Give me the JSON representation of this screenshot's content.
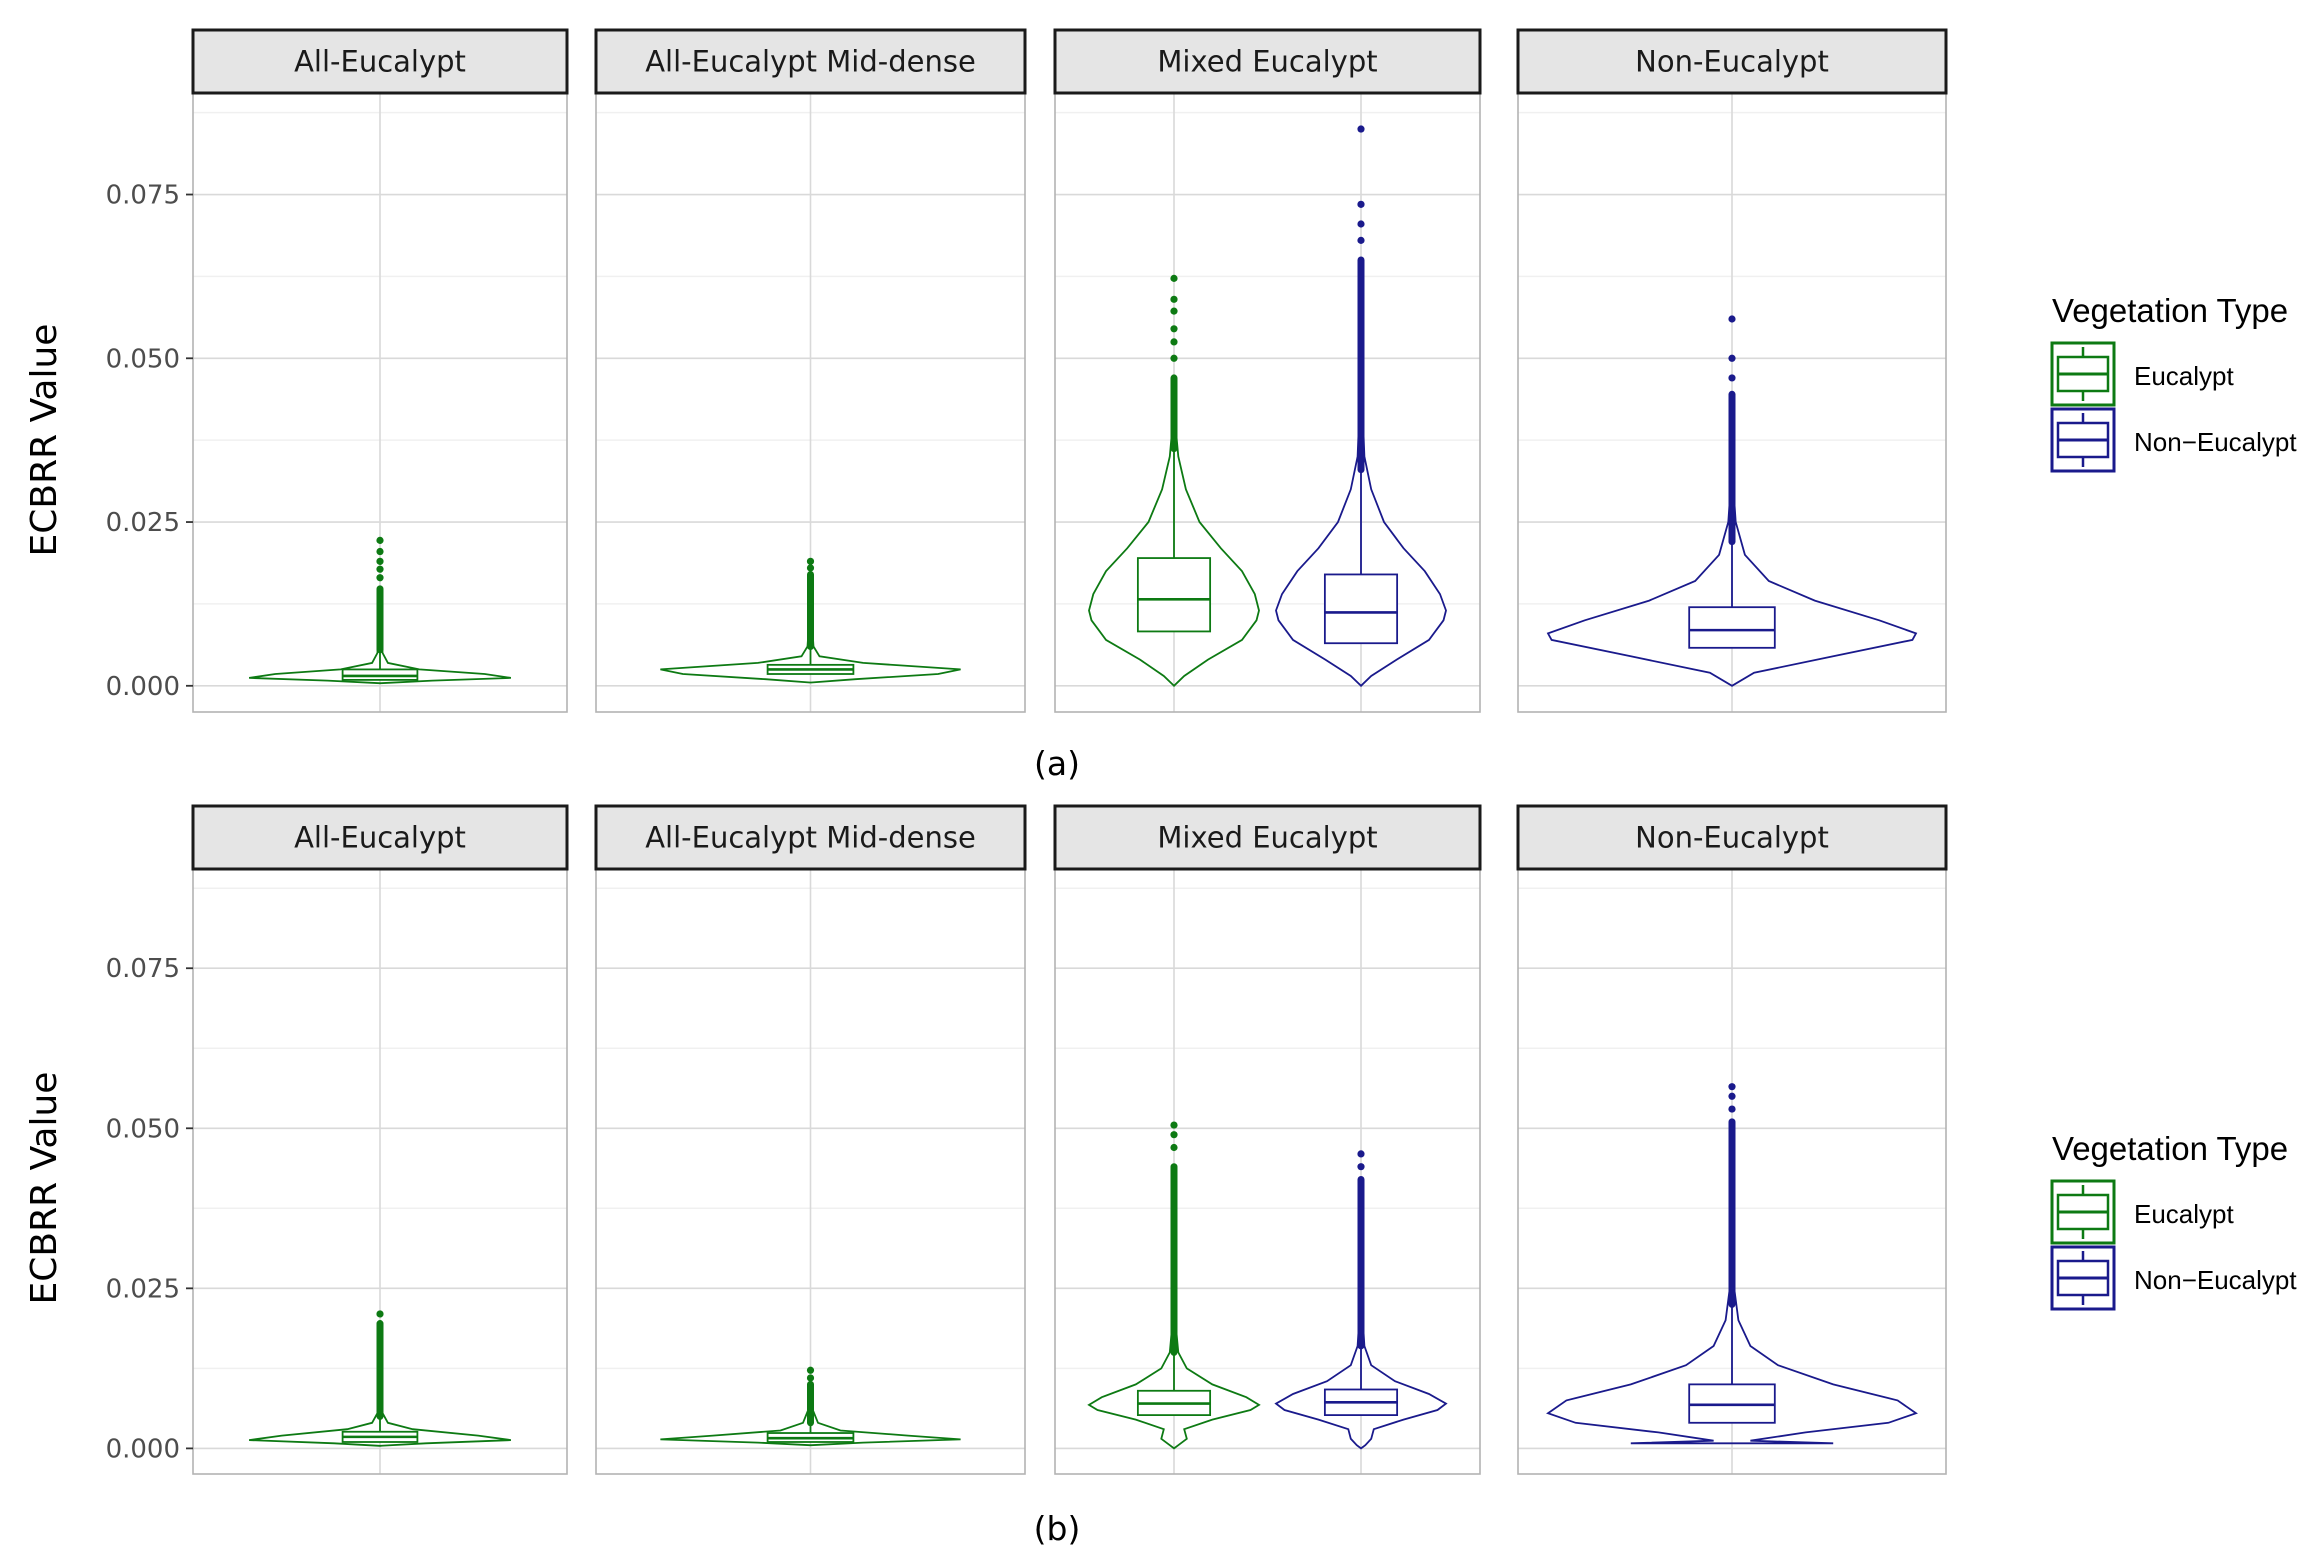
{
  "chart_data": [
    {
      "id": "a",
      "type": "violin",
      "caption": "(a)",
      "ylabel": "ECBRR Value",
      "ylim": [
        -0.004,
        0.0905
      ],
      "yticks": [
        "0.000",
        "0.025",
        "0.050",
        "0.075"
      ],
      "ytick_values": [
        0,
        0.025,
        0.05,
        0.075
      ],
      "legend": {
        "title": "Vegetation Type",
        "entries": [
          {
            "label": "Eucalypt",
            "color": "#0d7a13"
          },
          {
            "label": "Non−Eucalypt",
            "color": "#1a1a8c"
          }
        ]
      },
      "panels": [
        {
          "strip": "All-Eucalypt",
          "series": [
            {
              "name": "Eucalypt",
              "color": "#0d7a13",
              "pos": 0.5,
              "q1": 0.0009,
              "median": 0.0015,
              "q3": 0.0025,
              "whisker_high": 0.0055,
              "outlier_max": 0.0222,
              "dense_top": 0.0148,
              "sparse": [
                0.0165,
                0.0178,
                0.019,
                0.0205,
                0.0222
              ],
              "violin": [
                [
                  0.0004,
                  0.005
                ],
                [
                  0.0008,
                  0.4
                ],
                [
                  0.0012,
                  1.0
                ],
                [
                  0.0018,
                  0.8
                ],
                [
                  0.0025,
                  0.3
                ],
                [
                  0.0035,
                  0.06
                ],
                [
                  0.005,
                  0.02
                ],
                [
                  0.008,
                  0.008
                ],
                [
                  0.012,
                  0.004
                ],
                [
                  0.015,
                  0.003
                ]
              ]
            }
          ]
        },
        {
          "strip": "All-Eucalypt Mid-dense",
          "series": [
            {
              "name": "Eucalypt",
              "color": "#0d7a13",
              "pos": 0.5,
              "q1": 0.0018,
              "median": 0.0025,
              "q3": 0.0032,
              "whisker_high": 0.006,
              "outlier_max": 0.019,
              "dense_top": 0.017,
              "sparse": [
                0.018,
                0.019
              ],
              "violin": [
                [
                  0.0005,
                  0.005
                ],
                [
                  0.001,
                  0.3
                ],
                [
                  0.0018,
                  0.85
                ],
                [
                  0.0025,
                  1.0
                ],
                [
                  0.0035,
                  0.35
                ],
                [
                  0.0045,
                  0.06
                ],
                [
                  0.006,
                  0.02
                ],
                [
                  0.01,
                  0.008
                ],
                [
                  0.015,
                  0.004
                ],
                [
                  0.017,
                  0.003
                ]
              ]
            }
          ]
        },
        {
          "strip": "Mixed Eucalypt",
          "series": [
            {
              "name": "Eucalypt",
              "color": "#0d7a13",
              "pos": 0.28,
              "q1": 0.0083,
              "median": 0.0132,
              "q3": 0.0195,
              "whisker_high": 0.0362,
              "outlier_max": 0.0622,
              "dense_top": 0.047,
              "sparse": [
                0.05,
                0.0525,
                0.0545,
                0.0572,
                0.059,
                0.0622
              ],
              "violin": [
                [
                  0.0,
                  0.0
                ],
                [
                  0.0015,
                  0.12
                ],
                [
                  0.004,
                  0.4
                ],
                [
                  0.007,
                  0.8
                ],
                [
                  0.01,
                  0.97
                ],
                [
                  0.0115,
                  1.0
                ],
                [
                  0.014,
                  0.95
                ],
                [
                  0.0175,
                  0.8
                ],
                [
                  0.021,
                  0.55
                ],
                [
                  0.025,
                  0.3
                ],
                [
                  0.03,
                  0.14
                ],
                [
                  0.035,
                  0.05
                ],
                [
                  0.04,
                  0.015
                ],
                [
                  0.045,
                  0.008
                ],
                [
                  0.047,
                  0.005
                ]
              ]
            },
            {
              "name": "Non-Eucalypt",
              "color": "#1a1a8c",
              "pos": 0.72,
              "q1": 0.0065,
              "median": 0.0112,
              "q3": 0.017,
              "whisker_high": 0.033,
              "outlier_max": 0.085,
              "dense_top": 0.065,
              "sparse": [
                0.068,
                0.0705,
                0.0735,
                0.085
              ],
              "violin": [
                [
                  0.0,
                  0.0
                ],
                [
                  0.0015,
                  0.12
                ],
                [
                  0.004,
                  0.42
                ],
                [
                  0.007,
                  0.8
                ],
                [
                  0.01,
                  0.97
                ],
                [
                  0.0115,
                  1.0
                ],
                [
                  0.014,
                  0.93
                ],
                [
                  0.0175,
                  0.75
                ],
                [
                  0.021,
                  0.5
                ],
                [
                  0.025,
                  0.27
                ],
                [
                  0.03,
                  0.12
                ],
                [
                  0.035,
                  0.04
                ],
                [
                  0.045,
                  0.01
                ],
                [
                  0.055,
                  0.006
                ],
                [
                  0.065,
                  0.004
                ]
              ]
            }
          ]
        },
        {
          "strip": "Non-Eucalypt",
          "series": [
            {
              "name": "Non-Eucalypt",
              "color": "#1a1a8c",
              "pos": 0.5,
              "q1": 0.0058,
              "median": 0.0085,
              "q3": 0.012,
              "whisker_high": 0.022,
              "outlier_max": 0.056,
              "dense_top": 0.0445,
              "sparse": [
                0.047,
                0.05,
                0.056
              ],
              "violin": [
                [
                  0.0,
                  0.0
                ],
                [
                  0.002,
                  0.12
                ],
                [
                  0.0045,
                  0.55
                ],
                [
                  0.007,
                  0.98
                ],
                [
                  0.008,
                  1.0
                ],
                [
                  0.01,
                  0.8
                ],
                [
                  0.013,
                  0.45
                ],
                [
                  0.016,
                  0.2
                ],
                [
                  0.02,
                  0.07
                ],
                [
                  0.025,
                  0.02
                ],
                [
                  0.03,
                  0.008
                ],
                [
                  0.04,
                  0.004
                ],
                [
                  0.0445,
                  0.003
                ]
              ]
            }
          ]
        }
      ]
    },
    {
      "id": "b",
      "type": "violin",
      "caption": "(b)",
      "ylabel": "ECBRR Value",
      "ylim": [
        -0.004,
        0.0905
      ],
      "yticks": [
        "0.000",
        "0.025",
        "0.050",
        "0.075"
      ],
      "ytick_values": [
        0,
        0.025,
        0.05,
        0.075
      ],
      "legend": {
        "title": "Vegetation Type",
        "entries": [
          {
            "label": "Eucalypt",
            "color": "#0d7a13"
          },
          {
            "label": "Non−Eucalypt",
            "color": "#1a1a8c"
          }
        ]
      },
      "panels": [
        {
          "strip": "All-Eucalypt",
          "series": [
            {
              "name": "Eucalypt",
              "color": "#0d7a13",
              "pos": 0.5,
              "q1": 0.001,
              "median": 0.0018,
              "q3": 0.0026,
              "whisker_high": 0.005,
              "outlier_max": 0.021,
              "dense_top": 0.0195,
              "sparse": [
                0.021
              ],
              "violin": [
                [
                  0.0004,
                  0.005
                ],
                [
                  0.0008,
                  0.35
                ],
                [
                  0.0013,
                  1.0
                ],
                [
                  0.002,
                  0.75
                ],
                [
                  0.003,
                  0.25
                ],
                [
                  0.004,
                  0.06
                ],
                [
                  0.0055,
                  0.02
                ],
                [
                  0.01,
                  0.008
                ],
                [
                  0.015,
                  0.004
                ],
                [
                  0.0195,
                  0.003
                ]
              ]
            }
          ]
        },
        {
          "strip": "All-Eucalypt Mid-dense",
          "series": [
            {
              "name": "Eucalypt",
              "color": "#0d7a13",
              "pos": 0.5,
              "q1": 0.001,
              "median": 0.0016,
              "q3": 0.0024,
              "whisker_high": 0.004,
              "outlier_max": 0.0122,
              "dense_top": 0.01,
              "sparse": [
                0.011,
                0.0122
              ],
              "violin": [
                [
                  0.0005,
                  0.005
                ],
                [
                  0.0009,
                  0.35
                ],
                [
                  0.0014,
                  1.0
                ],
                [
                  0.002,
                  0.65
                ],
                [
                  0.0028,
                  0.2
                ],
                [
                  0.004,
                  0.05
                ],
                [
                  0.006,
                  0.015
                ],
                [
                  0.01,
                  0.004
                ]
              ]
            }
          ]
        },
        {
          "strip": "Mixed Eucalypt",
          "series": [
            {
              "name": "Eucalypt",
              "color": "#0d7a13",
              "pos": 0.28,
              "q1": 0.0052,
              "median": 0.007,
              "q3": 0.009,
              "whisker_high": 0.015,
              "outlier_max": 0.0505,
              "dense_top": 0.044,
              "sparse": [
                0.047,
                0.049,
                0.0505
              ],
              "violin": [
                [
                  0.0,
                  0.0
                ],
                [
                  0.0005,
                  0.05
                ],
                [
                  0.0015,
                  0.15
                ],
                [
                  0.003,
                  0.12
                ],
                [
                  0.0045,
                  0.45
                ],
                [
                  0.006,
                  0.9
                ],
                [
                  0.0068,
                  1.0
                ],
                [
                  0.008,
                  0.85
                ],
                [
                  0.01,
                  0.45
                ],
                [
                  0.0125,
                  0.15
                ],
                [
                  0.015,
                  0.05
                ],
                [
                  0.02,
                  0.015
                ],
                [
                  0.03,
                  0.008
                ],
                [
                  0.044,
                  0.004
                ]
              ]
            },
            {
              "name": "Non-Eucalypt",
              "color": "#1a1a8c",
              "pos": 0.72,
              "q1": 0.0052,
              "median": 0.0072,
              "q3": 0.0092,
              "whisker_high": 0.016,
              "outlier_max": 0.046,
              "dense_top": 0.042,
              "sparse": [
                0.044,
                0.046
              ],
              "violin": [
                [
                  0.0,
                  0.0
                ],
                [
                  0.0005,
                  0.05
                ],
                [
                  0.0015,
                  0.12
                ],
                [
                  0.003,
                  0.15
                ],
                [
                  0.0045,
                  0.5
                ],
                [
                  0.006,
                  0.9
                ],
                [
                  0.007,
                  1.0
                ],
                [
                  0.0085,
                  0.8
                ],
                [
                  0.0105,
                  0.4
                ],
                [
                  0.013,
                  0.12
                ],
                [
                  0.016,
                  0.04
                ],
                [
                  0.022,
                  0.012
                ],
                [
                  0.032,
                  0.006
                ],
                [
                  0.042,
                  0.004
                ]
              ]
            }
          ]
        },
        {
          "strip": "Non-Eucalypt",
          "series": [
            {
              "name": "Non-Eucalypt",
              "color": "#1a1a8c",
              "pos": 0.5,
              "q1": 0.004,
              "median": 0.0068,
              "q3": 0.01,
              "whisker_high": 0.0225,
              "outlier_max": 0.0565,
              "dense_top": 0.051,
              "sparse": [
                0.053,
                0.055,
                0.0565
              ],
              "violin": [
                [
                  0.0008,
                  0.55
                ],
                [
                  0.0012,
                  0.1
                ],
                [
                  0.0025,
                  0.4
                ],
                [
                  0.004,
                  0.85
                ],
                [
                  0.0055,
                  1.0
                ],
                [
                  0.0075,
                  0.9
                ],
                [
                  0.01,
                  0.55
                ],
                [
                  0.013,
                  0.25
                ],
                [
                  0.016,
                  0.1
                ],
                [
                  0.02,
                  0.035
                ],
                [
                  0.025,
                  0.012
                ],
                [
                  0.035,
                  0.006
                ],
                [
                  0.051,
                  0.004
                ]
              ]
            }
          ]
        }
      ]
    }
  ]
}
